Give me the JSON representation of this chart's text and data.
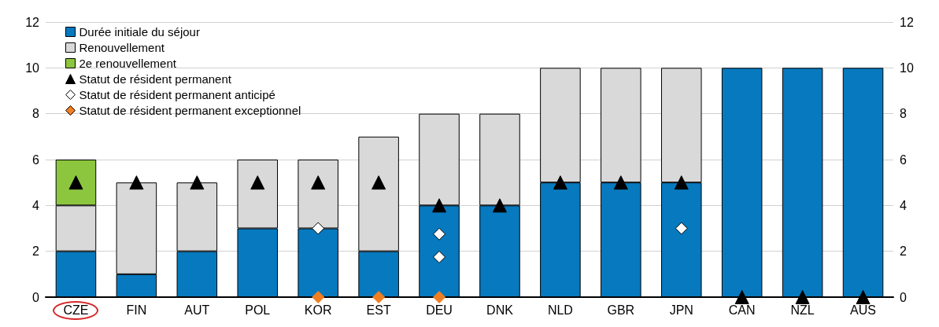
{
  "chart_data": {
    "type": "bar",
    "stacked": true,
    "categories": [
      "CZE",
      "FIN",
      "AUT",
      "POL",
      "KOR",
      "EST",
      "DEU",
      "DNK",
      "NLD",
      "GBR",
      "JPN",
      "CAN",
      "NZL",
      "AUS"
    ],
    "series": [
      {
        "name": "Durée initiale du séjour",
        "color": "#0779bf",
        "values": [
          2,
          1,
          2,
          3,
          3,
          2,
          4,
          4,
          5,
          5,
          5,
          10,
          10,
          10
        ]
      },
      {
        "name": "Renouvellement",
        "color": "#d9d9d9",
        "values": [
          2,
          4,
          3,
          3,
          3,
          5,
          4,
          4,
          5,
          5,
          5,
          null,
          null,
          null
        ]
      },
      {
        "name": "2e renouvellement",
        "color": "#8cc63e",
        "values": [
          2,
          null,
          null,
          null,
          null,
          null,
          null,
          null,
          null,
          null,
          null,
          null,
          null,
          null
        ]
      },
      {
        "name": "Statut de résident permanent",
        "type": "scatter",
        "marker": "triangle",
        "color": "#000000",
        "x": [
          "CZE",
          "FIN",
          "AUT",
          "POL",
          "KOR",
          "EST",
          "DEU",
          "DNK",
          "NLD",
          "GBR",
          "JPN",
          "CAN",
          "NZL",
          "AUS"
        ],
        "values": [
          5,
          5,
          5,
          5,
          5,
          5,
          4,
          4,
          5,
          5,
          5,
          0,
          0,
          0
        ]
      },
      {
        "name": "Statut de résident permanent anticipé",
        "type": "scatter",
        "marker": "diamond",
        "color": "#ffffff",
        "x": [
          "KOR",
          "DEU",
          "DEU",
          "JPN"
        ],
        "values": [
          3,
          2.75,
          1.75,
          3
        ]
      },
      {
        "name": "Statut de résident permanent exceptionnel",
        "type": "scatter",
        "marker": "diamond",
        "color": "#f07f22",
        "x": [
          "KOR",
          "EST",
          "DEU"
        ],
        "values": [
          0,
          0,
          0
        ]
      }
    ],
    "ylim": [
      0,
      12
    ],
    "yticks": [
      0,
      2,
      4,
      6,
      8,
      10,
      12
    ],
    "y2lim": [
      0,
      12
    ],
    "y2ticks": [
      0,
      2,
      4,
      6,
      8,
      10,
      12
    ],
    "grid": "y",
    "legend": "top left"
  }
}
